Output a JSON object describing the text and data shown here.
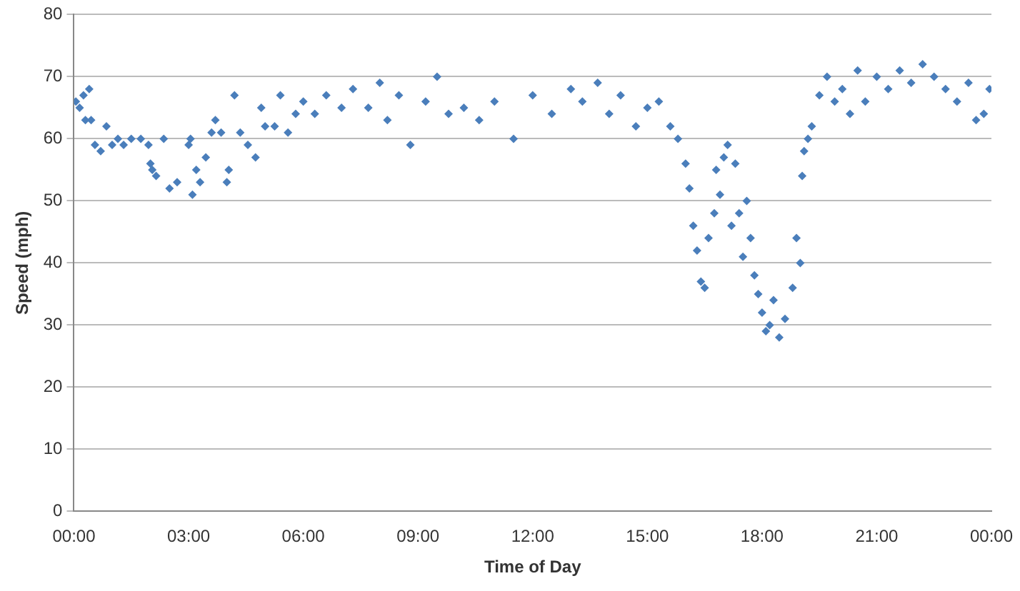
{
  "chart_data": {
    "type": "scatter",
    "xlabel": "Time of Day",
    "ylabel": "Speed (mph)",
    "grid": "y",
    "marker": "diamond",
    "xlim": [
      0,
      24
    ],
    "xticks": [
      {
        "value": 0,
        "label": "00:00"
      },
      {
        "value": 3,
        "label": "03:00"
      },
      {
        "value": 6,
        "label": "06:00"
      },
      {
        "value": 9,
        "label": "09:00"
      },
      {
        "value": 12,
        "label": "12:00"
      },
      {
        "value": 15,
        "label": "15:00"
      },
      {
        "value": 18,
        "label": "18:00"
      },
      {
        "value": 21,
        "label": "21:00"
      },
      {
        "value": 24,
        "label": "00:00"
      }
    ],
    "ylim": [
      0,
      80
    ],
    "yticks": [
      0,
      10,
      20,
      30,
      40,
      50,
      60,
      70,
      80
    ],
    "series": [
      {
        "color": "#4a7ebb",
        "x": [
          0.05,
          0.15,
          0.25,
          0.3,
          0.4,
          0.45,
          0.55,
          0.7,
          0.85,
          1.0,
          1.15,
          1.3,
          1.5,
          1.75,
          1.95,
          2.0,
          2.05,
          2.15,
          2.35,
          2.5,
          2.7,
          3.0,
          3.05,
          3.1,
          3.2,
          3.3,
          3.45,
          3.6,
          3.7,
          3.85,
          4.0,
          4.05,
          4.2,
          4.35,
          4.55,
          4.75,
          4.9,
          5.0,
          5.25,
          5.4,
          5.6,
          5.8,
          6.0,
          6.3,
          6.6,
          7.0,
          7.3,
          7.7,
          8.0,
          8.2,
          8.5,
          8.8,
          9.2,
          9.5,
          9.8,
          10.2,
          10.6,
          11.0,
          11.5,
          12.0,
          12.5,
          13.0,
          13.3,
          13.7,
          14.0,
          14.3,
          14.7,
          15.0,
          15.3,
          15.6,
          15.8,
          16.0,
          16.1,
          16.2,
          16.3,
          16.4,
          16.5,
          16.6,
          16.75,
          16.8,
          16.9,
          17.0,
          17.1,
          17.2,
          17.3,
          17.4,
          17.5,
          17.6,
          17.7,
          17.8,
          17.9,
          18.0,
          18.1,
          18.2,
          18.3,
          18.45,
          18.6,
          18.8,
          18.9,
          19.0,
          19.05,
          19.1,
          19.2,
          19.3,
          19.5,
          19.7,
          19.9,
          20.1,
          20.3,
          20.5,
          20.7,
          21.0,
          21.3,
          21.6,
          21.9,
          22.2,
          22.5,
          22.8,
          23.1,
          23.4,
          23.6,
          23.8,
          23.95
        ],
        "values": [
          66,
          65,
          67,
          63,
          68,
          63,
          59,
          58,
          62,
          59,
          60,
          59,
          60,
          60,
          59,
          56,
          55,
          54,
          60,
          52,
          53,
          59,
          60,
          51,
          55,
          53,
          57,
          61,
          63,
          61,
          53,
          55,
          67,
          61,
          59,
          57,
          65,
          62,
          62,
          67,
          61,
          64,
          66,
          64,
          67,
          65,
          68,
          65,
          69,
          63,
          67,
          59,
          66,
          70,
          64,
          65,
          63,
          66,
          60,
          67,
          64,
          68,
          66,
          69,
          64,
          67,
          62,
          65,
          66,
          62,
          60,
          56,
          52,
          46,
          42,
          37,
          36,
          44,
          48,
          55,
          51,
          57,
          59,
          46,
          56,
          48,
          41,
          50,
          44,
          38,
          35,
          32,
          29,
          30,
          34,
          28,
          31,
          36,
          44,
          40,
          54,
          58,
          60,
          62,
          67,
          70,
          66,
          68,
          64,
          71,
          66,
          70,
          68,
          71,
          69,
          72,
          70,
          68,
          66,
          69,
          63,
          64,
          68
        ]
      }
    ]
  }
}
